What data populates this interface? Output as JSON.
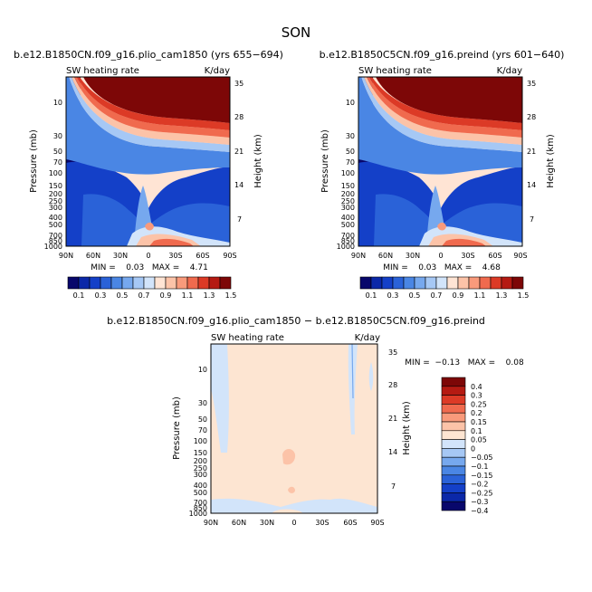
{
  "page_title": "SON",
  "colors": {
    "main_scale": [
      "#08076b",
      "#0b28a8",
      "#1440c8",
      "#2a62d8",
      "#4a86e4",
      "#76a8ee",
      "#a6c8f5",
      "#d2e4fa",
      "#ffe4d4",
      "#fcc3a8",
      "#f99a7b",
      "#f06a4e",
      "#dc3a26",
      "#b51a12",
      "#7d0707"
    ],
    "diff_scale": [
      "#08076b",
      "#0b28a8",
      "#1440c8",
      "#2a62d8",
      "#4a86e4",
      "#76a8ee",
      "#a6c8f5",
      "#d2e4fa",
      "#fde5d2",
      "#fcc3a8",
      "#f99a7b",
      "#f06a4e",
      "#dc3a26",
      "#b51a12",
      "#7d0707"
    ]
  },
  "panels": [
    {
      "title": "b.e12.B1850CN.f09_g16.plio_cam1850 (yrs 655−694)",
      "left_label": "SW heating rate",
      "right_label": "K/day",
      "stats": "MIN =    0.03   MAX =    4.71"
    },
    {
      "title": "b.e12.B1850C5CN.f09_g16.preind (yrs 601−640)",
      "left_label": "SW heating rate",
      "right_label": "K/day",
      "stats": "MIN =    0.03   MAX =    4.68"
    },
    {
      "title": "b.e12.B1850CN.f09_g16.plio_cam1850 − b.e12.B1850C5CN.f09_g16.preind",
      "left_label": "SW heating rate",
      "right_label": "K/day",
      "stats": "MIN =  −0.13   MAX =    0.08"
    }
  ],
  "axes": {
    "ylabel": "Pressure (mb)",
    "y2label": "Height (km)",
    "x_ticks": [
      "90N",
      "60N",
      "30N",
      "0",
      "30S",
      "60S",
      "90S"
    ],
    "pressure_ticks": [
      "10",
      "30",
      "50",
      "70",
      "100",
      "150",
      "200",
      "250",
      "300",
      "400",
      "500",
      "700",
      "850",
      "1000"
    ],
    "height_ticks": [
      "35",
      "28",
      "21",
      "14",
      "7"
    ]
  },
  "colorbar_main": [
    "0.1",
    "0.3",
    "0.5",
    "0.7",
    "0.9",
    "1.1",
    "1.3",
    "1.5"
  ],
  "colorbar_diff": [
    "0.4",
    "0.3",
    "0.25",
    "0.2",
    "0.15",
    "0.1",
    "0.05",
    "0",
    "−0.05",
    "−0.1",
    "−0.15",
    "−0.2",
    "−0.25",
    "−0.3",
    "−0.4"
  ],
  "chart_data": [
    {
      "type": "heatmap",
      "title": "b.e12.B1850CN.f09_g16.plio_cam1850 (yrs 655−694)",
      "variable": "SW heating rate",
      "units": "K/day",
      "xlabel": "",
      "ylabel": "Pressure (mb)",
      "y2label": "Height (km)",
      "x": [
        "90N",
        "60N",
        "30N",
        "0",
        "30S",
        "60S",
        "90S"
      ],
      "y_pressure_mb": [
        10,
        30,
        50,
        70,
        100,
        150,
        200,
        250,
        300,
        400,
        500,
        700,
        850,
        1000
      ],
      "min": 0.03,
      "max": 4.71,
      "levels": [
        0.1,
        0.2,
        0.3,
        0.4,
        0.5,
        0.6,
        0.7,
        0.8,
        0.9,
        1.0,
        1.1,
        1.2,
        1.3,
        1.4,
        1.5
      ]
    },
    {
      "type": "heatmap",
      "title": "b.e12.B1850C5CN.f09_g16.preind (yrs 601−640)",
      "variable": "SW heating rate",
      "units": "K/day",
      "xlabel": "",
      "ylabel": "Pressure (mb)",
      "y2label": "Height (km)",
      "x": [
        "90N",
        "60N",
        "30N",
        "0",
        "30S",
        "60S",
        "90S"
      ],
      "y_pressure_mb": [
        10,
        30,
        50,
        70,
        100,
        150,
        200,
        250,
        300,
        400,
        500,
        700,
        850,
        1000
      ],
      "min": 0.03,
      "max": 4.68,
      "levels": [
        0.1,
        0.2,
        0.3,
        0.4,
        0.5,
        0.6,
        0.7,
        0.8,
        0.9,
        1.0,
        1.1,
        1.2,
        1.3,
        1.4,
        1.5
      ]
    },
    {
      "type": "heatmap",
      "title": "b.e12.B1850CN.f09_g16.plio_cam1850 − b.e12.B1850C5CN.f09_g16.preind",
      "variable": "SW heating rate",
      "units": "K/day",
      "xlabel": "",
      "ylabel": "Pressure (mb)",
      "y2label": "Height (km)",
      "x": [
        "90N",
        "60N",
        "30N",
        "0",
        "30S",
        "60S",
        "90S"
      ],
      "y_pressure_mb": [
        10,
        30,
        50,
        70,
        100,
        150,
        200,
        250,
        300,
        400,
        500,
        700,
        850,
        1000
      ],
      "min": -0.13,
      "max": 0.08,
      "levels": [
        -0.4,
        -0.3,
        -0.25,
        -0.2,
        -0.15,
        -0.1,
        -0.05,
        0,
        0.05,
        0.1,
        0.15,
        0.2,
        0.25,
        0.3,
        0.4
      ]
    }
  ]
}
